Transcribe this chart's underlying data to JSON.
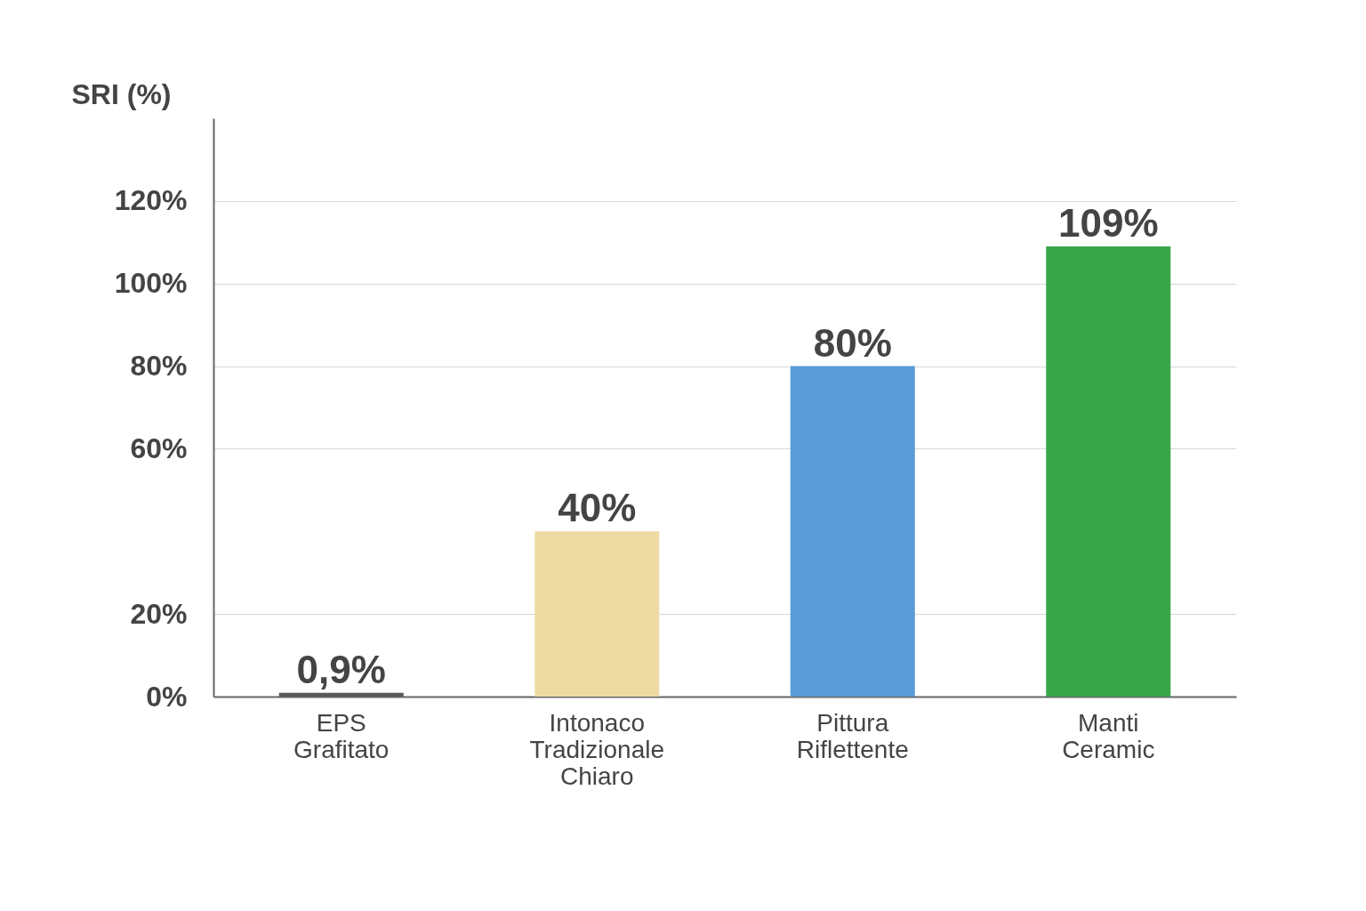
{
  "chart_data": {
    "type": "bar",
    "ylabel": "SRI (%)",
    "categories": [
      "EPS Grafitato",
      "Intonaco Tradizionale Chiaro",
      "Pittura Riflettente",
      "Manti Ceramic"
    ],
    "values": [
      0.9,
      40,
      80,
      109
    ],
    "colors": [
      "#5a5a5a",
      "#ecdca4",
      "#5a9bd8",
      "#3aa64a"
    ],
    "value_labels": [
      "0,9%",
      "40%",
      "80%",
      "109%"
    ],
    "ylim": [
      0,
      140
    ],
    "yticks": [
      {
        "value": 0,
        "label": "0%"
      },
      {
        "value": 20,
        "label": "20%"
      },
      {
        "value": 60,
        "label": "60%"
      },
      {
        "value": 80,
        "label": "80%"
      },
      {
        "value": 100,
        "label": "100%"
      },
      {
        "value": 120,
        "label": "120%"
      }
    ],
    "grid": "y",
    "legend": false
  }
}
